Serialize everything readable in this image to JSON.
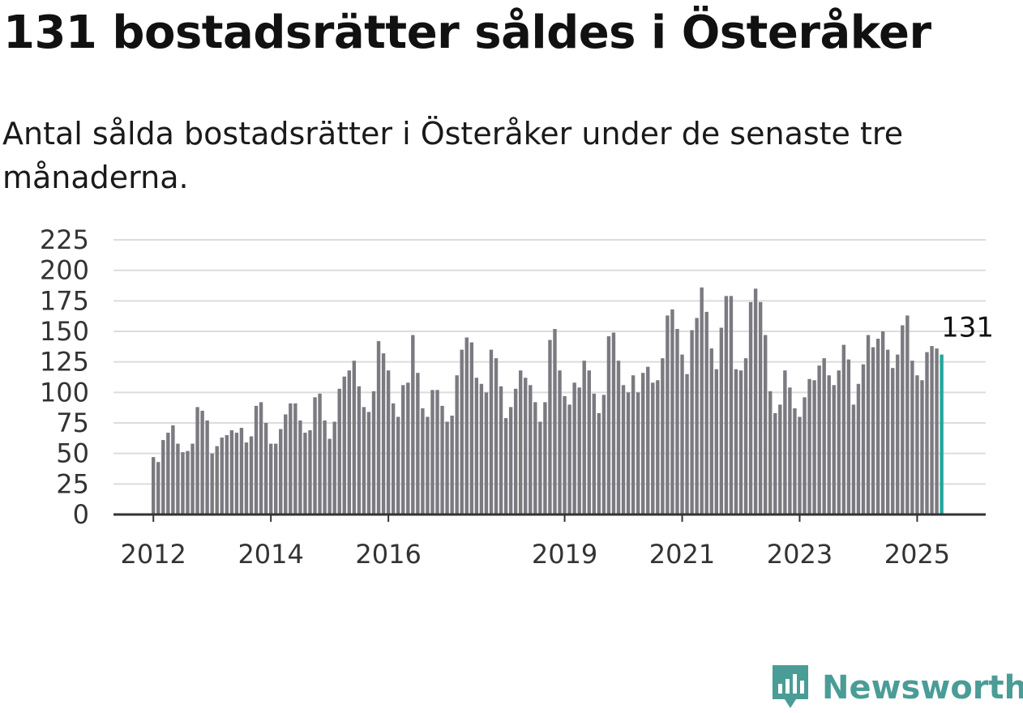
{
  "title": "131 bostadsrätter såldes i Österåker",
  "subtitle": "Antal sålda bostadsrätter i Österåker under de senaste tre månaderna.",
  "brand": {
    "name": "Newsworthy",
    "icon": "newsworthy-logo-icon",
    "color": "#4a9d96"
  },
  "chart_data": {
    "type": "bar",
    "title": "131 bostadsrätter såldes i Österåker",
    "subtitle": "Antal sålda bostadsrätter i Österåker under de senaste tre månaderna.",
    "xlabel": "",
    "ylabel": "",
    "ylim": [
      0,
      225
    ],
    "yticks": [
      0,
      25,
      50,
      75,
      100,
      125,
      150,
      175,
      200,
      225
    ],
    "xticks": [
      "2012",
      "2014",
      "2016",
      "2019",
      "2021",
      "2023",
      "2025"
    ],
    "grid": true,
    "bar_color": "#7a7a80",
    "highlight_color": "#26a69a",
    "highlight_label": "131",
    "period": {
      "first": "2012-01",
      "last": "2025-06",
      "step": "month"
    },
    "values": [
      47,
      43,
      61,
      67,
      73,
      58,
      51,
      52,
      58,
      88,
      85,
      77,
      50,
      56,
      63,
      65,
      69,
      67,
      71,
      59,
      64,
      89,
      92,
      75,
      58,
      58,
      70,
      82,
      91,
      91,
      77,
      67,
      69,
      96,
      99,
      77,
      62,
      76,
      103,
      113,
      118,
      126,
      105,
      88,
      84,
      101,
      142,
      132,
      118,
      91,
      80,
      106,
      108,
      147,
      116,
      87,
      80,
      102,
      102,
      89,
      76,
      81,
      114,
      135,
      145,
      141,
      112,
      107,
      100,
      135,
      128,
      105,
      79,
      88,
      103,
      118,
      112,
      106,
      92,
      76,
      92,
      143,
      152,
      118,
      97,
      90,
      108,
      104,
      126,
      118,
      99,
      83,
      98,
      146,
      149,
      126,
      106,
      100,
      114,
      100,
      116,
      121,
      108,
      110,
      128,
      163,
      168,
      152,
      131,
      115,
      151,
      161,
      186,
      166,
      136,
      119,
      153,
      179,
      179,
      119,
      118,
      128,
      174,
      185,
      174,
      147,
      101,
      83,
      90,
      118,
      104,
      87,
      80,
      96,
      111,
      110,
      122,
      128,
      114,
      106,
      118,
      139,
      127,
      90,
      107,
      123,
      147,
      137,
      144,
      150,
      135,
      120,
      131,
      155,
      163,
      126,
      114,
      110,
      133,
      138,
      136,
      131
    ]
  }
}
